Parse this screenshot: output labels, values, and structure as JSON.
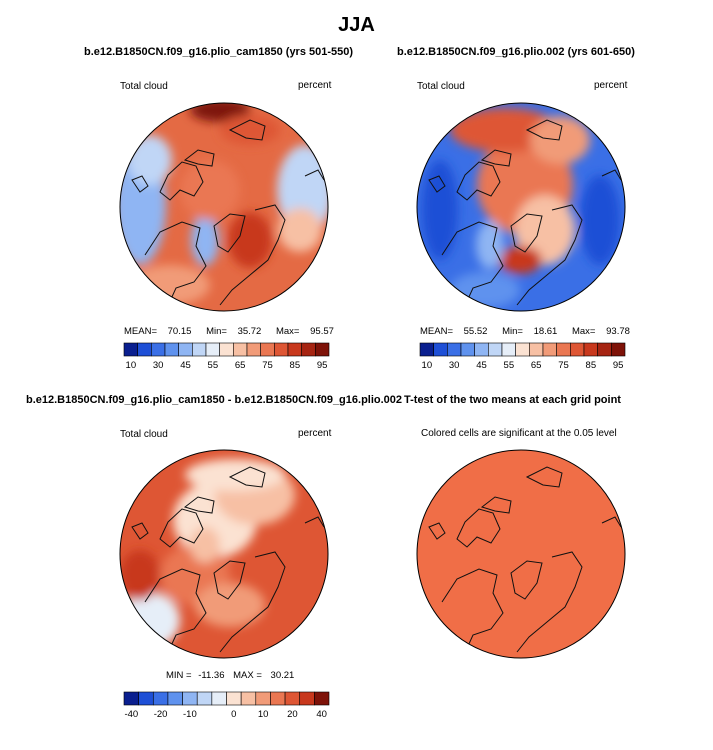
{
  "figure": {
    "title": "JJA",
    "colors": {
      "border": "#000000",
      "coast": "#111111",
      "sig_fill": "#f06e47"
    }
  },
  "chart_data": [
    {
      "type": "heatmap",
      "projection": "north-polar-stereographic",
      "title": "b.e12.B1850CN.f09_g16.plio_cam1850 (yrs 501-550)",
      "left_label": "Total cloud",
      "right_label": "percent",
      "stats": {
        "mean_label": "MEAN=",
        "mean": "70.15",
        "min_label": "Min=",
        "min": "35.72",
        "max_label": "Max=",
        "max": "95.57"
      },
      "colorbar": {
        "ticks": [
          "10",
          "30",
          "45",
          "55",
          "65",
          "75",
          "85",
          "95"
        ],
        "colors": [
          "#0a1f8f",
          "#1e4fd6",
          "#3a6fe6",
          "#5f92ee",
          "#8fb5f3",
          "#c0d6f6",
          "#e6eef8",
          "#fbe2d2",
          "#f7c0a4",
          "#f19b78",
          "#ea7752",
          "#de5634",
          "#c8381d",
          "#a62412",
          "#7e1208"
        ]
      }
    },
    {
      "type": "heatmap",
      "projection": "north-polar-stereographic",
      "title": "b.e12.B1850CN.f09_g16.plio.002 (yrs 601-650)",
      "left_label": "Total cloud",
      "right_label": "percent",
      "stats": {
        "mean_label": "MEAN=",
        "mean": "55.52",
        "min_label": "Min=",
        "min": "18.61",
        "max_label": "Max=",
        "max": "93.78"
      },
      "colorbar": {
        "ticks": [
          "10",
          "30",
          "45",
          "55",
          "65",
          "75",
          "85",
          "95"
        ],
        "colors": [
          "#0a1f8f",
          "#1e4fd6",
          "#3a6fe6",
          "#5f92ee",
          "#8fb5f3",
          "#c0d6f6",
          "#e6eef8",
          "#fbe2d2",
          "#f7c0a4",
          "#f19b78",
          "#ea7752",
          "#de5634",
          "#c8381d",
          "#a62412",
          "#7e1208"
        ]
      }
    },
    {
      "type": "heatmap",
      "projection": "north-polar-stereographic",
      "title": "b.e12.B1850CN.f09_g16.plio_cam1850 - b.e12.B1850CN.f09_g16.plio.002",
      "left_label": "Total cloud",
      "right_label": "percent",
      "stats": {
        "min_label": "MIN =",
        "min": "-11.36",
        "max_label": "MAX =",
        "max": "30.21"
      },
      "colorbar": {
        "ticks": [
          "-40",
          "-20",
          "-10",
          "0",
          "10",
          "20",
          "40"
        ],
        "colors": [
          "#0a1f8f",
          "#1e4fd6",
          "#3a6fe6",
          "#5f92ee",
          "#8fb5f3",
          "#c0d6f6",
          "#e6eef8",
          "#fbe2d2",
          "#f7c0a4",
          "#f19b78",
          "#ea7752",
          "#de5634",
          "#c8381d",
          "#7e1208"
        ]
      }
    },
    {
      "type": "heatmap",
      "projection": "north-polar-stereographic",
      "title": "T-test of the two means at each grid point",
      "subtitle": "Colored cells are significant at the 0.05 level"
    }
  ]
}
